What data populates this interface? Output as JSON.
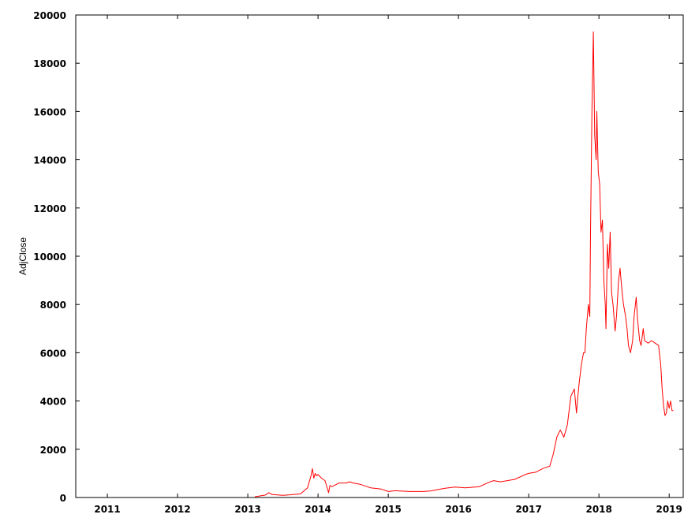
{
  "chart_data": {
    "type": "line",
    "title": "",
    "xlabel": "",
    "ylabel": "AdjClose",
    "xlim": [
      2010.55,
      2019.2
    ],
    "ylim": [
      0,
      20000
    ],
    "x_ticks": [
      "2011",
      "2012",
      "2013",
      "2014",
      "2015",
      "2016",
      "2017",
      "2018",
      "2019"
    ],
    "y_ticks": [
      "0",
      "2000",
      "4000",
      "6000",
      "8000",
      "10000",
      "12000",
      "14000",
      "16000",
      "18000",
      "20000"
    ],
    "grid": false,
    "legend": "none",
    "line_color": "#ff0000",
    "series": [
      {
        "x": [
          2013.1,
          2013.25,
          2013.3,
          2013.35,
          2013.5,
          2013.6,
          2013.75,
          2013.85,
          2013.9,
          2013.92,
          2013.94,
          2013.96,
          2013.98,
          2014.0,
          2014.05,
          2014.1,
          2014.15,
          2014.17,
          2014.2,
          2014.3,
          2014.4,
          2014.45,
          2014.5,
          2014.6,
          2014.75,
          2014.9,
          2015.0,
          2015.1,
          2015.3,
          2015.5,
          2015.6,
          2015.8,
          2015.95,
          2016.1,
          2016.3,
          2016.45,
          2016.5,
          2016.6,
          2016.8,
          2016.95,
          2017.0,
          2017.1,
          2017.2,
          2017.3,
          2017.35,
          2017.4,
          2017.45,
          2017.5,
          2017.55,
          2017.6,
          2017.65,
          2017.68,
          2017.7,
          2017.72,
          2017.75,
          2017.78,
          2017.8,
          2017.82,
          2017.85,
          2017.87,
          2017.88,
          2017.9,
          2017.92,
          2017.94,
          2017.96,
          2017.97,
          2017.99,
          2018.01,
          2018.03,
          2018.05,
          2018.07,
          2018.09,
          2018.1,
          2018.12,
          2018.14,
          2018.16,
          2018.18,
          2018.2,
          2018.23,
          2018.25,
          2018.28,
          2018.3,
          2018.33,
          2018.35,
          2018.38,
          2018.4,
          2018.42,
          2018.45,
          2018.48,
          2018.5,
          2018.53,
          2018.55,
          2018.58,
          2018.6,
          2018.63,
          2018.65,
          2018.7,
          2018.75,
          2018.8,
          2018.85,
          2018.88,
          2018.9,
          2018.92,
          2018.94,
          2018.96,
          2018.98,
          2019.0,
          2019.02,
          2019.04,
          2019.06
        ],
        "y": [
          30,
          100,
          200,
          120,
          90,
          110,
          150,
          400,
          900,
          1200,
          800,
          1000,
          900,
          950,
          800,
          700,
          200,
          500,
          450,
          600,
          600,
          650,
          600,
          550,
          400,
          350,
          250,
          280,
          250,
          250,
          270,
          380,
          430,
          400,
          450,
          650,
          700,
          650,
          750,
          950,
          1000,
          1050,
          1200,
          1300,
          1800,
          2500,
          2800,
          2500,
          3000,
          4200,
          4500,
          3500,
          4200,
          4800,
          5500,
          6000,
          6000,
          7000,
          8000,
          7500,
          11000,
          16000,
          19300,
          15000,
          14000,
          16000,
          13500,
          13000,
          11000,
          11500,
          9000,
          8000,
          7000,
          10500,
          9500,
          11000,
          8500,
          8000,
          6900,
          7500,
          9000,
          9500,
          8500,
          8000,
          7500,
          7000,
          6300,
          6000,
          6500,
          7500,
          8300,
          7400,
          6500,
          6300,
          7000,
          6500,
          6400,
          6500,
          6400,
          6300,
          5500,
          4500,
          3800,
          3400,
          3500,
          4000,
          3700,
          4000,
          3600,
          3600
        ]
      }
    ]
  }
}
